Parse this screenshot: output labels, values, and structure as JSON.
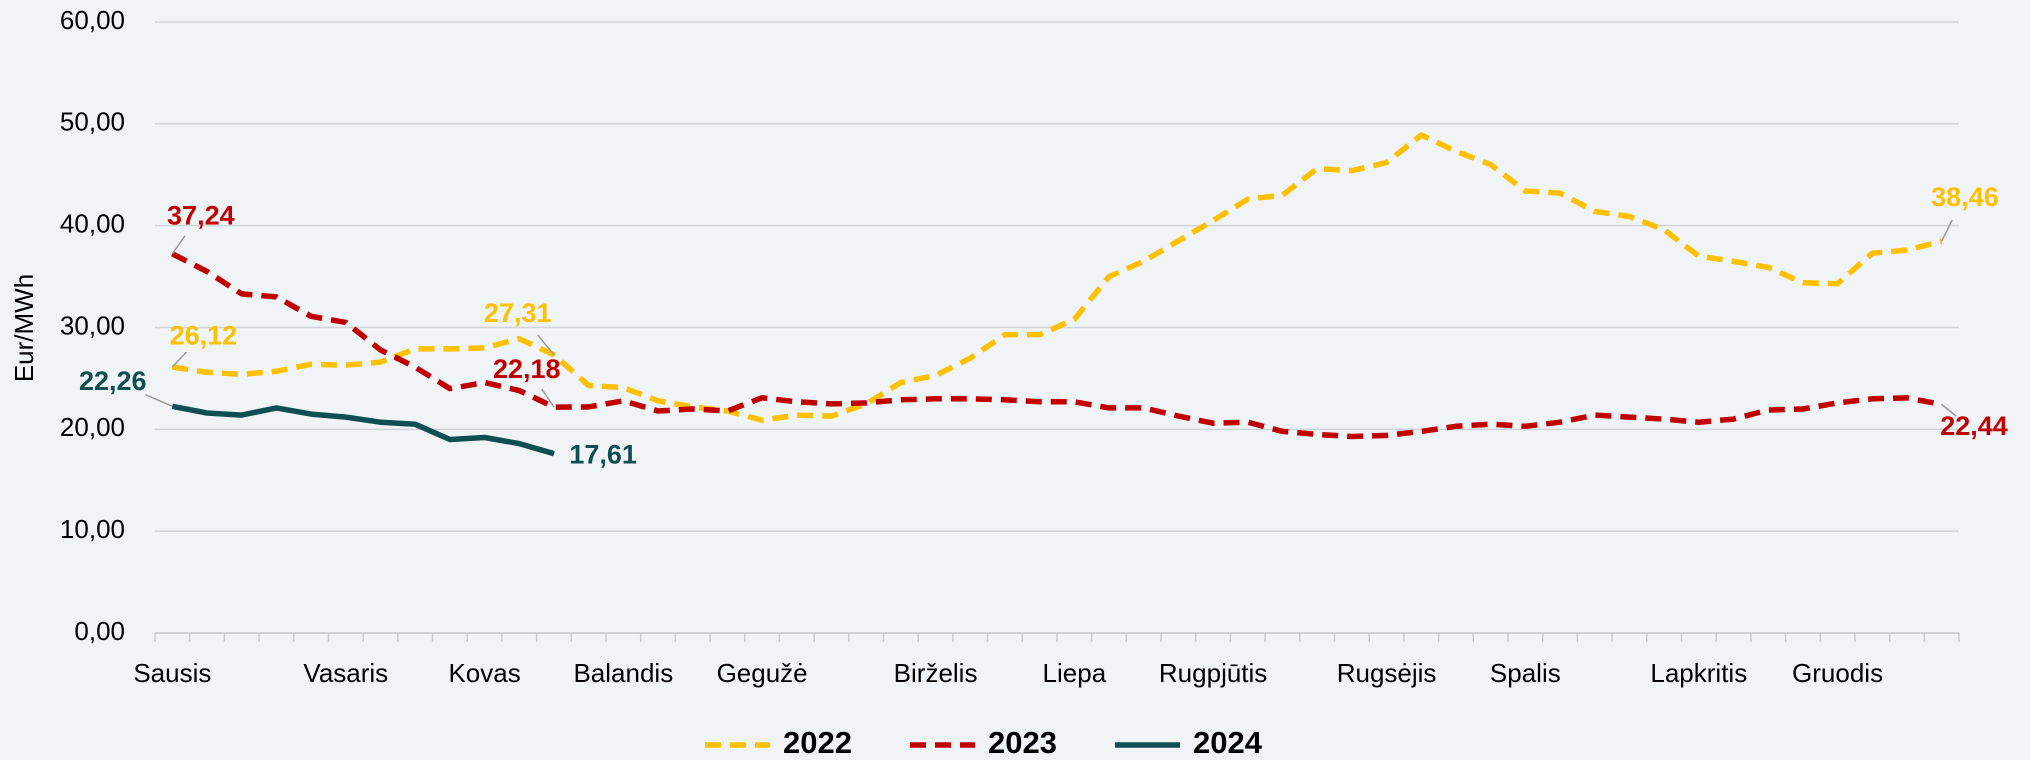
{
  "chart_data": {
    "type": "line",
    "ylabel": "Eur/MWh",
    "categories": [
      "Sausis",
      null,
      null,
      null,
      null,
      "Vasaris",
      null,
      null,
      null,
      "Kovas",
      null,
      null,
      null,
      "Balandis",
      null,
      null,
      null,
      "Gegužė",
      null,
      null,
      null,
      null,
      "Birželis",
      null,
      null,
      null,
      "Liepa",
      null,
      null,
      null,
      "Rugpjūtis",
      null,
      null,
      null,
      null,
      "Rugsėjis",
      null,
      null,
      null,
      "Spalis",
      null,
      null,
      null,
      null,
      "Lapkritis",
      null,
      null,
      null,
      "Gruodis",
      null,
      null,
      null
    ],
    "ylim": [
      0,
      60
    ],
    "yticks": [
      {
        "value": 0,
        "label": "0,00"
      },
      {
        "value": 10,
        "label": "10,00"
      },
      {
        "value": 20,
        "label": "20,00"
      },
      {
        "value": 30,
        "label": "30,00"
      },
      {
        "value": 40,
        "label": "40,00"
      },
      {
        "value": 50,
        "label": "50,00"
      },
      {
        "value": 60,
        "label": "60,00"
      }
    ],
    "grid": true,
    "legend": "bottom",
    "series": [
      {
        "name": "2022",
        "color": "#ffc000",
        "dashed": true,
        "values": [
          26.12,
          25.6,
          25.4,
          25.7,
          26.4,
          26.3,
          26.6,
          27.9,
          27.9,
          28.0,
          28.9,
          27.31,
          24.3,
          24.1,
          22.8,
          22.2,
          21.8,
          20.9,
          21.4,
          21.3,
          22.5,
          24.6,
          25.3,
          27.0,
          29.3,
          29.3,
          30.8,
          35.0,
          36.5,
          38.5,
          40.5,
          42.6,
          43.0,
          45.6,
          45.4,
          46.2,
          48.9,
          47.3,
          46.0,
          43.4,
          43.2,
          41.4,
          40.9,
          39.6,
          37.0,
          36.5,
          35.9,
          34.4,
          34.3,
          37.3,
          37.6,
          38.46
        ],
        "value_labels": [
          "26,12",
          null,
          null,
          null,
          null,
          null,
          null,
          null,
          null,
          null,
          null,
          "27,31",
          null,
          null,
          null,
          null,
          null,
          null,
          null,
          null,
          null,
          null,
          null,
          null,
          null,
          null,
          null,
          null,
          null,
          null,
          null,
          null,
          null,
          null,
          null,
          null,
          null,
          null,
          null,
          null,
          null,
          null,
          null,
          null,
          null,
          null,
          null,
          null,
          null,
          null,
          null,
          "38,46"
        ]
      },
      {
        "name": "2023",
        "color": "#c00000",
        "dashed": true,
        "values": [
          37.24,
          35.5,
          33.3,
          33.0,
          31.1,
          30.5,
          27.8,
          26.1,
          24.0,
          24.6,
          23.8,
          22.18,
          22.2,
          22.8,
          21.8,
          22.0,
          21.8,
          23.1,
          22.7,
          22.5,
          22.6,
          22.9,
          23.0,
          23.0,
          22.9,
          22.7,
          22.7,
          22.1,
          22.1,
          21.3,
          20.6,
          20.7,
          19.8,
          19.5,
          19.3,
          19.4,
          19.8,
          20.3,
          20.5,
          20.3,
          20.7,
          21.4,
          21.2,
          21.0,
          20.7,
          21.0,
          21.9,
          22.0,
          22.6,
          23.0,
          23.1,
          22.44
        ],
        "value_labels": [
          "37,24",
          null,
          null,
          null,
          null,
          null,
          null,
          null,
          null,
          null,
          null,
          "22,18",
          null,
          null,
          null,
          null,
          null,
          null,
          null,
          null,
          null,
          null,
          null,
          null,
          null,
          null,
          null,
          null,
          null,
          null,
          null,
          null,
          null,
          null,
          null,
          null,
          null,
          null,
          null,
          null,
          null,
          null,
          null,
          null,
          null,
          null,
          null,
          null,
          null,
          null,
          null,
          "22,44"
        ]
      },
      {
        "name": "2024",
        "color": "#0f4f52",
        "dashed": false,
        "values": [
          22.26,
          21.6,
          21.4,
          22.1,
          21.5,
          21.2,
          20.7,
          20.5,
          19.0,
          19.2,
          18.6,
          17.61,
          null,
          null,
          null,
          null,
          null,
          null,
          null,
          null,
          null,
          null,
          null,
          null,
          null,
          null,
          null,
          null,
          null,
          null,
          null,
          null,
          null,
          null,
          null,
          null,
          null,
          null,
          null,
          null,
          null,
          null,
          null,
          null,
          null,
          null,
          null,
          null,
          null,
          null,
          null,
          null
        ],
        "value_labels": [
          "22,26",
          null,
          null,
          null,
          null,
          null,
          null,
          null,
          null,
          null,
          null,
          "17,61",
          null,
          null,
          null,
          null,
          null,
          null,
          null,
          null,
          null,
          null,
          null,
          null,
          null,
          null,
          null,
          null,
          null,
          null,
          null,
          null,
          null,
          null,
          null,
          null,
          null,
          null,
          null,
          null,
          null,
          null,
          null,
          null,
          null,
          null,
          null,
          null,
          null,
          null,
          null,
          null
        ]
      }
    ]
  }
}
